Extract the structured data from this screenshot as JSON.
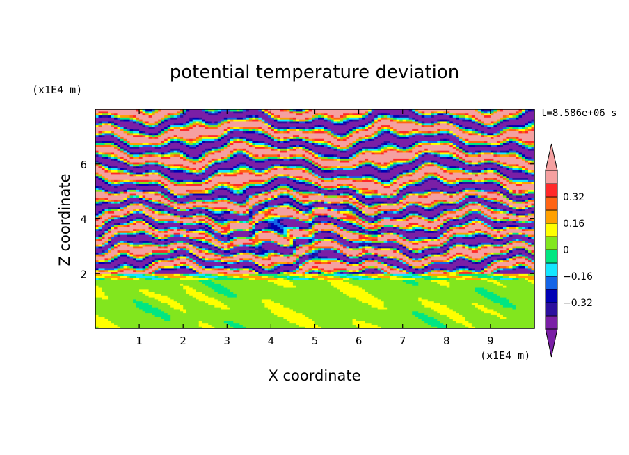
{
  "chart_data": {
    "type": "heatmap",
    "title": "potential temperature deviation",
    "xlabel": "X coordinate",
    "ylabel": "Z coordinate",
    "x_unit": "(x1E4 m)",
    "z_unit": "(x1E4 m)",
    "time_label": "t=8.586e+06 s",
    "xlim": [
      0,
      10
    ],
    "ylim": [
      0,
      8
    ],
    "x_ticks": [
      1,
      2,
      3,
      4,
      5,
      6,
      7,
      8,
      9
    ],
    "y_ticks": [
      2,
      4,
      6
    ],
    "colorbar": {
      "levels": [
        -0.48,
        -0.4,
        -0.32,
        -0.24,
        -0.16,
        -0.08,
        0,
        0.08,
        0.16,
        0.24,
        0.32,
        0.4,
        0.48
      ],
      "tick_labels": [
        "0.32",
        "0.16",
        "0",
        "−0.16",
        "−0.32"
      ],
      "tick_values": [
        0.32,
        0.16,
        0,
        -0.16,
        -0.32
      ],
      "colors": [
        "#7a1fa6",
        "#2b0f9e",
        "#0000b4",
        "#1464e6",
        "#14e6ff",
        "#00e682",
        "#82e61e",
        "#ffff00",
        "#ffa000",
        "#ff6414",
        "#ff2828",
        "#f5a0a0"
      ],
      "extend": "both"
    },
    "regions": [
      {
        "z_range": [
          0,
          2
        ],
        "description": "lower layer weak deviation",
        "dominant_values": [
          0,
          0.08
        ]
      },
      {
        "z_range": [
          2,
          5
        ],
        "description": "mixed turbulent layers",
        "dominant_values": [
          -0.48,
          0.48
        ]
      },
      {
        "z_range": [
          5,
          8
        ],
        "description": "alternating strong bands",
        "dominant_values": [
          -0.48,
          0.48
        ]
      }
    ]
  }
}
